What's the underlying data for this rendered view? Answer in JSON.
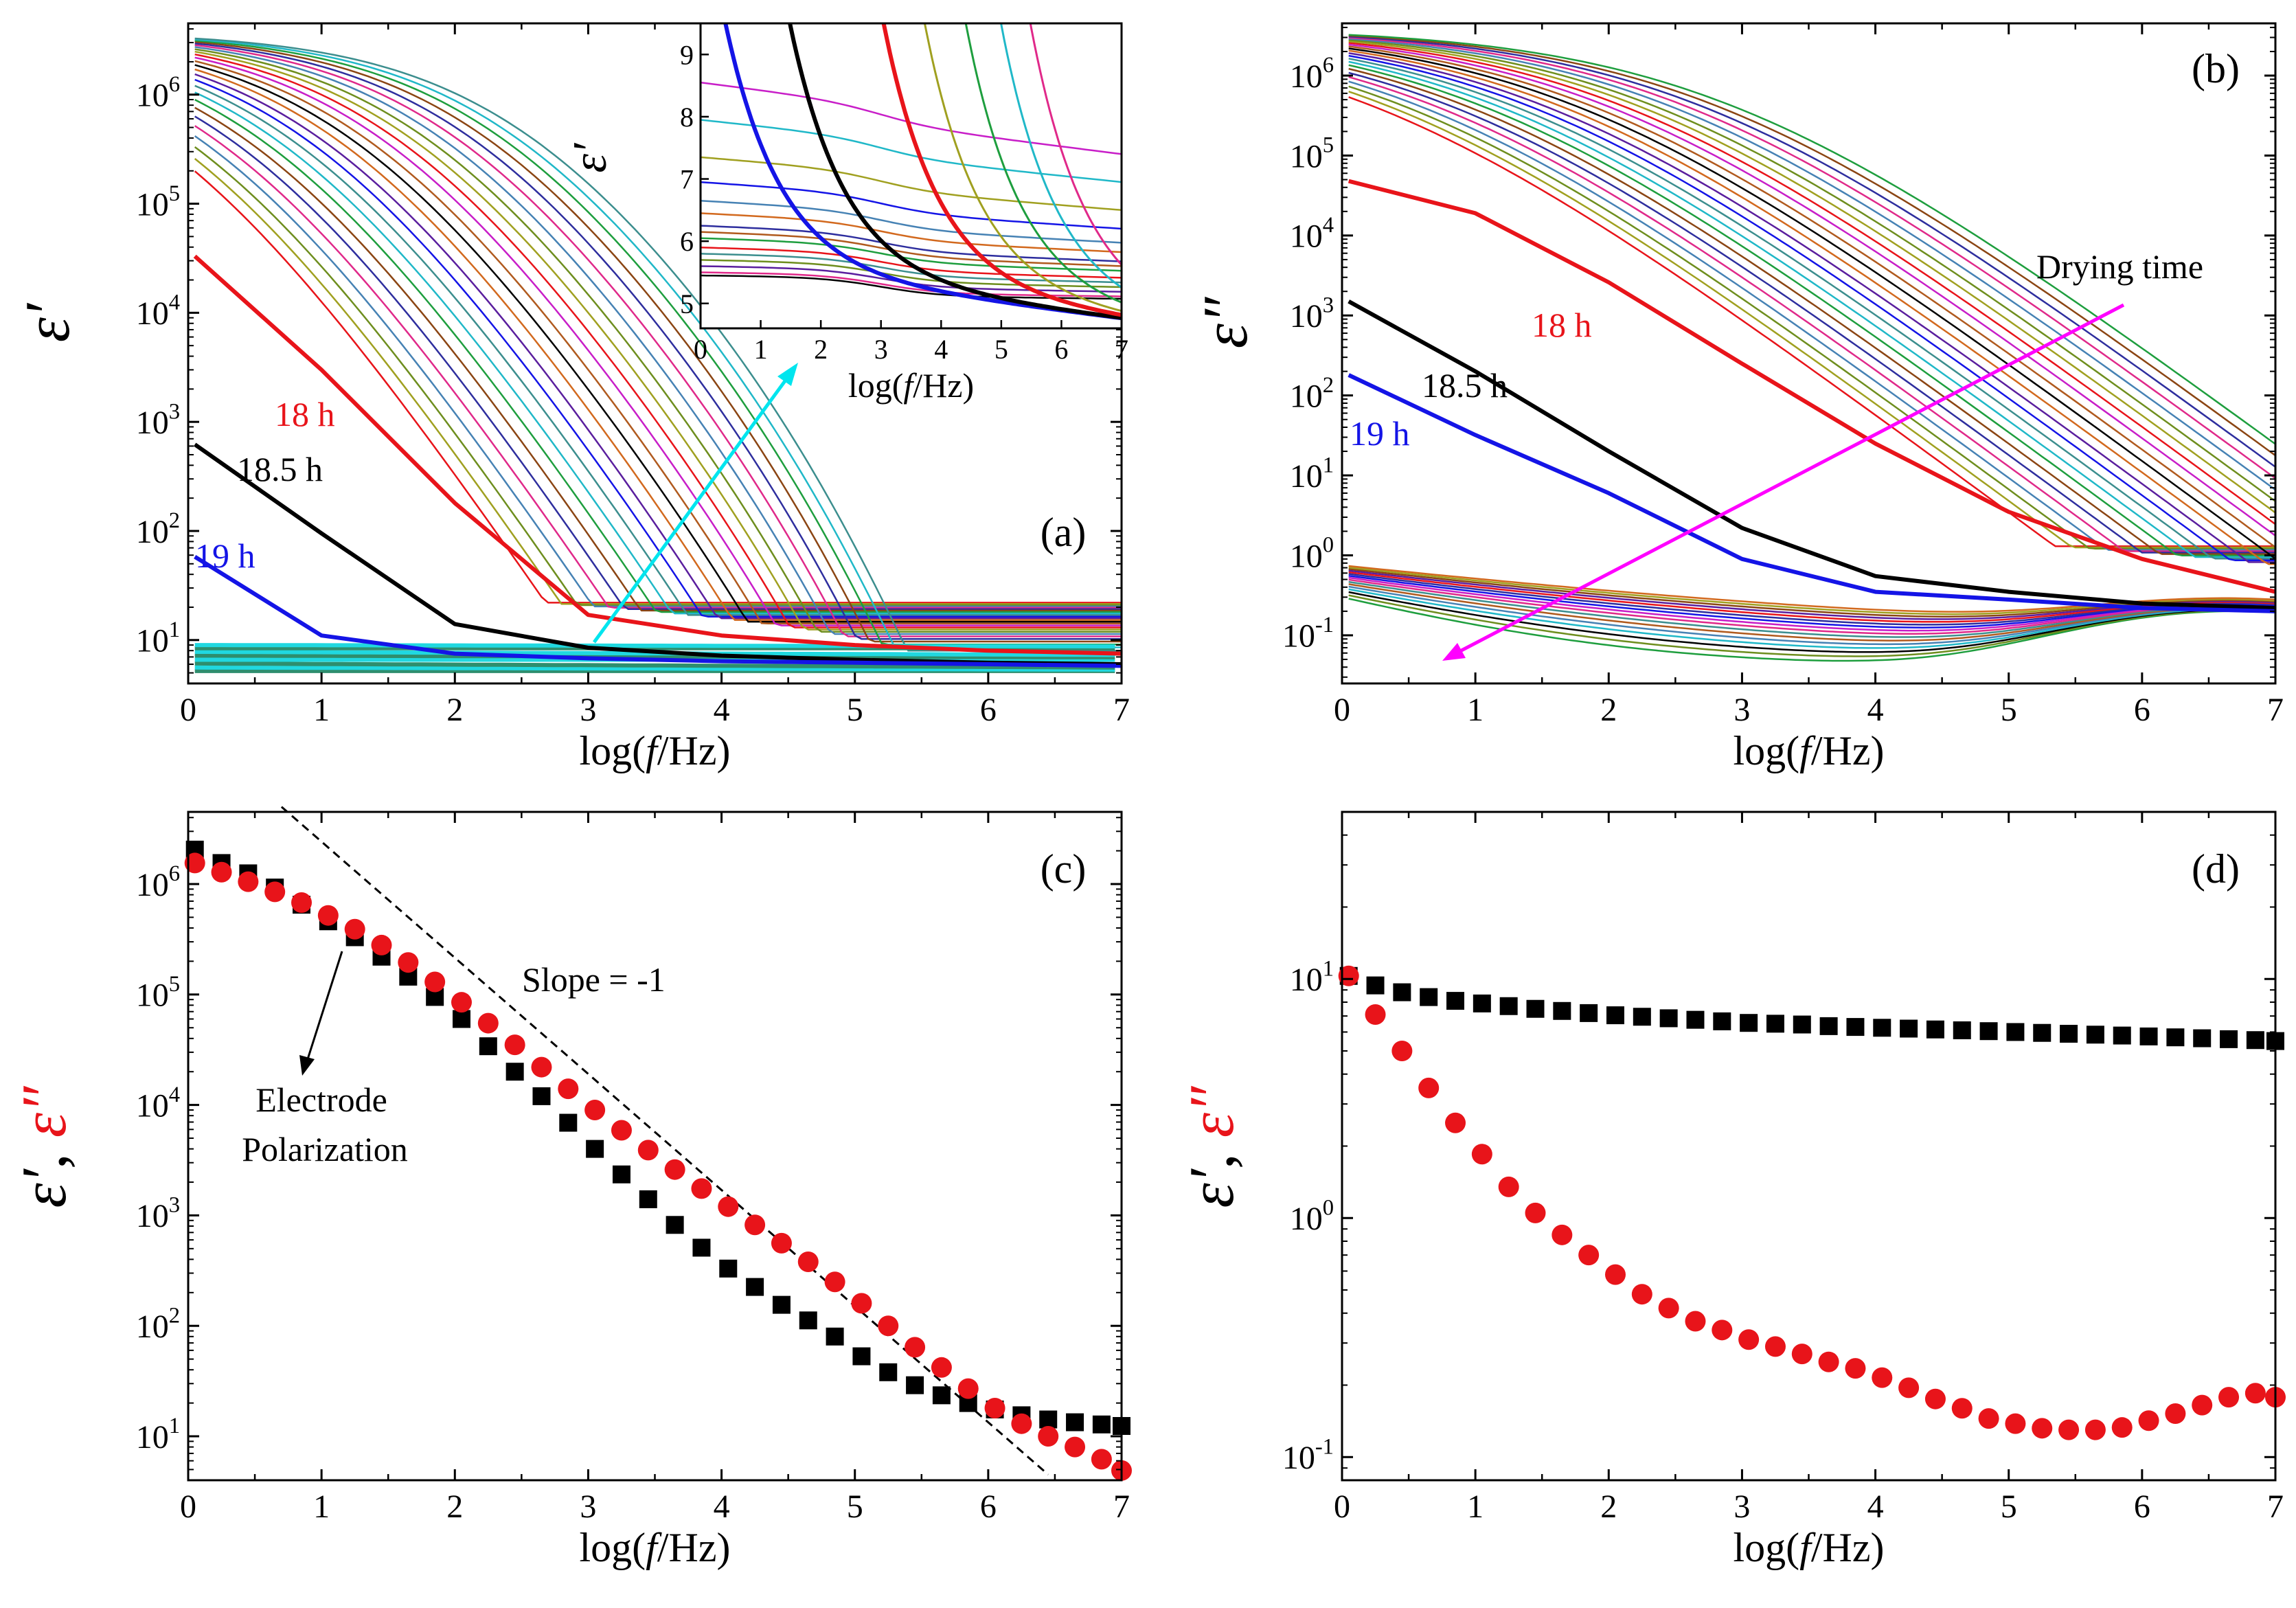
{
  "chart_data": [
    {
      "panel": "a",
      "type": "line",
      "panel_label": "(a)",
      "xlabel": "log(f/Hz)",
      "ylabel": "ε′",
      "xlim": [
        0,
        7
      ],
      "ylim": [
        4,
        4500000
      ],
      "yscale": "log",
      "xticks": [
        0,
        1,
        2,
        3,
        4,
        5,
        6,
        7
      ],
      "yticks": [
        10,
        100,
        1000,
        10000,
        100000,
        1000000
      ],
      "ytick_labels": [
        "10^1",
        "10^2",
        "10^3",
        "10^4",
        "10^5",
        "10^6"
      ],
      "annotations": [
        {
          "text": "18 h",
          "color": "#e8141a"
        },
        {
          "text": "18.5 h",
          "color": "#000000"
        },
        {
          "text": "19 h",
          "color": "#1414e6"
        }
      ],
      "highlighted_series": [
        {
          "label": "18 h",
          "color": "#e8141a",
          "x": [
            0.05,
            1,
            2,
            3,
            4,
            5,
            6,
            7
          ],
          "y": [
            33000,
            3000,
            180,
            17,
            11,
            9,
            8,
            7.5
          ]
        },
        {
          "label": "18.5 h",
          "color": "#000000",
          "x": [
            0.05,
            1,
            2,
            3,
            4,
            5,
            6,
            7
          ],
          "y": [
            620,
            95,
            14,
            8.5,
            7.2,
            6.6,
            6.2,
            6.0
          ]
        },
        {
          "label": "19 h",
          "color": "#1414e6",
          "x": [
            0.05,
            1,
            2,
            3,
            4,
            5,
            6,
            7
          ],
          "y": [
            58,
            11,
            7.5,
            6.8,
            6.4,
            6.2,
            6.0,
            5.8
          ]
        }
      ],
      "colors": [
        "#e8141a",
        "#000000",
        "#1414e6",
        "#1e9e3e",
        "#e0298a",
        "#a0a020",
        "#b05a1e",
        "#5a1e9e",
        "#20b8c8",
        "#2e2e9e",
        "#6e8e1e",
        "#c81ec8",
        "#d2691e",
        "#3c8e8e",
        "#8b4513",
        "#4682b4"
      ],
      "inset": {
        "type": "line",
        "xlabel": "log(f/Hz)",
        "ylabel": "ε′",
        "xlim": [
          0,
          7
        ],
        "ylim": [
          4.6,
          9.5
        ],
        "xticks": [
          0,
          1,
          2,
          3,
          4,
          5,
          6,
          7
        ],
        "yticks": [
          5,
          6,
          7,
          8,
          9
        ]
      }
    },
    {
      "panel": "b",
      "type": "line",
      "panel_label": "(b)",
      "xlabel": "log(f/Hz)",
      "ylabel": "ε″",
      "xlim": [
        0,
        7
      ],
      "ylim": [
        0.025,
        4500000
      ],
      "yscale": "log",
      "xticks": [
        0,
        1,
        2,
        3,
        4,
        5,
        6,
        7
      ],
      "yticks": [
        0.1,
        1,
        10,
        100,
        1000,
        10000,
        100000,
        1000000
      ],
      "ytick_labels": [
        "10^-1",
        "10^0",
        "10^1",
        "10^2",
        "10^3",
        "10^4",
        "10^5",
        "10^6"
      ],
      "annotations": [
        {
          "text": "18 h",
          "color": "#e8141a"
        },
        {
          "text": "18.5 h",
          "color": "#000000"
        },
        {
          "text": "19 h",
          "color": "#1414e6"
        },
        {
          "text": "Drying time",
          "color": "#000000"
        }
      ],
      "highlighted_series": [
        {
          "label": "18 h",
          "color": "#e8141a",
          "x": [
            0.05,
            1,
            2,
            3,
            4,
            5,
            6,
            7
          ],
          "y": [
            48000,
            19000,
            2600,
            250,
            25,
            3.5,
            0.9,
            0.35
          ]
        },
        {
          "label": "18.5 h",
          "color": "#000000",
          "x": [
            0.05,
            1,
            2,
            3,
            4,
            5,
            6,
            7
          ],
          "y": [
            1500,
            200,
            20,
            2.2,
            0.55,
            0.35,
            0.25,
            0.22
          ]
        },
        {
          "label": "19 h",
          "color": "#1414e6",
          "x": [
            0.05,
            1,
            2,
            3,
            4,
            5,
            6,
            7
          ],
          "y": [
            180,
            32,
            6,
            0.9,
            0.35,
            0.28,
            0.22,
            0.2
          ]
        }
      ]
    },
    {
      "panel": "c",
      "type": "scatter",
      "panel_label": "(c)",
      "xlabel": "log(f/Hz)",
      "ylabel_parts": [
        "ε′",
        ", ",
        "ε″"
      ],
      "xlim": [
        0,
        7
      ],
      "ylim": [
        4,
        4500000
      ],
      "yscale": "log",
      "xticks": [
        0,
        1,
        2,
        3,
        4,
        5,
        6,
        7
      ],
      "yticks": [
        10,
        100,
        1000,
        10000,
        100000,
        1000000
      ],
      "ytick_labels": [
        "10^1",
        "10^2",
        "10^3",
        "10^4",
        "10^5",
        "10^6"
      ],
      "annotations": [
        {
          "text": "Slope = -1"
        },
        {
          "text": "Electrode"
        },
        {
          "text": "Polarization"
        }
      ],
      "reference_line": {
        "slope": -1,
        "x": [
          0.7,
          6.45
        ],
        "y": [
          5000000,
          4.5
        ]
      },
      "series": [
        {
          "label": "ε′",
          "marker": "square",
          "color": "#000000",
          "x": [
            0.05,
            0.25,
            0.45,
            0.65,
            0.85,
            1.05,
            1.25,
            1.45,
            1.65,
            1.85,
            2.05,
            2.25,
            2.45,
            2.65,
            2.85,
            3.05,
            3.25,
            3.45,
            3.65,
            3.85,
            4.05,
            4.25,
            4.45,
            4.65,
            4.85,
            5.05,
            5.25,
            5.45,
            5.65,
            5.85,
            6.05,
            6.25,
            6.45,
            6.65,
            6.85,
            7.0
          ],
          "y": [
            2050000,
            1550000,
            1250000,
            930000,
            650000,
            460000,
            330000,
            220000,
            145000,
            95000,
            60000,
            34000,
            20000,
            12000,
            6900,
            4000,
            2350,
            1400,
            820,
            510,
            330,
            225,
            155,
            112,
            80,
            53,
            38,
            29,
            23.5,
            20,
            17.5,
            15.5,
            14.2,
            13.4,
            12.8,
            12.4
          ]
        },
        {
          "label": "ε″",
          "marker": "circle",
          "color": "#e8141a",
          "x": [
            0.05,
            0.25,
            0.45,
            0.65,
            0.85,
            1.05,
            1.25,
            1.45,
            1.65,
            1.85,
            2.05,
            2.25,
            2.45,
            2.65,
            2.85,
            3.05,
            3.25,
            3.45,
            3.65,
            3.85,
            4.05,
            4.25,
            4.45,
            4.65,
            4.85,
            5.05,
            5.25,
            5.45,
            5.65,
            5.85,
            6.05,
            6.25,
            6.45,
            6.65,
            6.85,
            7.0
          ],
          "y": [
            1550000,
            1280000,
            1050000,
            850000,
            680000,
            520000,
            390000,
            280000,
            195000,
            130000,
            85000,
            55000,
            35000,
            22000,
            14000,
            9000,
            5900,
            3900,
            2600,
            1750,
            1200,
            820,
            560,
            380,
            250,
            160,
            100,
            64,
            42,
            27,
            18,
            13,
            10,
            8,
            6.2,
            4.9
          ]
        }
      ]
    },
    {
      "panel": "d",
      "type": "scatter",
      "panel_label": "(d)",
      "xlabel": "log(f/Hz)",
      "ylabel_parts": [
        "ε′",
        ", ",
        "ε″"
      ],
      "xlim": [
        0,
        7
      ],
      "ylim": [
        0.08,
        50
      ],
      "yscale": "log",
      "xticks": [
        0,
        1,
        2,
        3,
        4,
        5,
        6,
        7
      ],
      "yticks": [
        0.1,
        1,
        10
      ],
      "ytick_labels": [
        "10^-1",
        "10^0",
        "10^1"
      ],
      "series": [
        {
          "label": "ε′",
          "marker": "square",
          "color": "#000000",
          "x": [
            0.05,
            0.25,
            0.45,
            0.65,
            0.85,
            1.05,
            1.25,
            1.45,
            1.65,
            1.85,
            2.05,
            2.25,
            2.45,
            2.65,
            2.85,
            3.05,
            3.25,
            3.45,
            3.65,
            3.85,
            4.05,
            4.25,
            4.45,
            4.65,
            4.85,
            5.05,
            5.25,
            5.45,
            5.65,
            5.85,
            6.05,
            6.25,
            6.45,
            6.65,
            6.85,
            7.0
          ],
          "y": [
            10.3,
            9.4,
            8.8,
            8.4,
            8.1,
            7.9,
            7.7,
            7.5,
            7.35,
            7.2,
            7.05,
            6.95,
            6.85,
            6.75,
            6.65,
            6.55,
            6.5,
            6.45,
            6.35,
            6.3,
            6.25,
            6.2,
            6.15,
            6.1,
            6.05,
            6.0,
            5.95,
            5.9,
            5.85,
            5.8,
            5.75,
            5.7,
            5.65,
            5.6,
            5.55,
            5.5
          ]
        },
        {
          "label": "ε″",
          "marker": "circle",
          "color": "#e8141a",
          "x": [
            0.05,
            0.25,
            0.45,
            0.65,
            0.85,
            1.05,
            1.25,
            1.45,
            1.65,
            1.85,
            2.05,
            2.25,
            2.45,
            2.65,
            2.85,
            3.05,
            3.25,
            3.45,
            3.65,
            3.85,
            4.05,
            4.25,
            4.45,
            4.65,
            4.85,
            5.05,
            5.25,
            5.45,
            5.65,
            5.85,
            6.05,
            6.25,
            6.45,
            6.65,
            6.85,
            7.0
          ],
          "y": [
            10.3,
            7.1,
            5.0,
            3.5,
            2.5,
            1.85,
            1.35,
            1.05,
            0.85,
            0.7,
            0.58,
            0.48,
            0.42,
            0.37,
            0.34,
            0.31,
            0.29,
            0.27,
            0.25,
            0.235,
            0.215,
            0.195,
            0.175,
            0.16,
            0.145,
            0.138,
            0.132,
            0.13,
            0.13,
            0.133,
            0.142,
            0.152,
            0.165,
            0.178,
            0.185,
            0.178
          ]
        }
      ]
    }
  ]
}
